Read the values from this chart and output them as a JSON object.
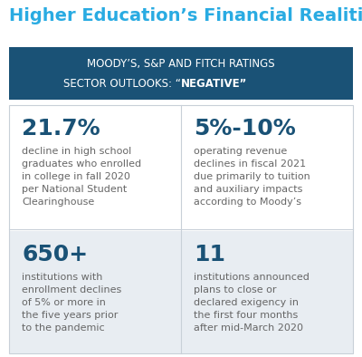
{
  "title": "Higher Education’s Financial Realities",
  "title_color": "#29ABE2",
  "title_fontsize": 14,
  "banner_bg": "#1A5276",
  "banner_text_line1": "MOODY’S, S&P AND FITCH RATINGS",
  "banner_text_line2_prefix": "SECTOR OUTLOOKS: “",
  "banner_text_line2_bold": "NEGATIVE",
  "banner_text_line2_suffix": "”",
  "banner_text_color": "#FFFFFF",
  "banner_fontsize": 8.5,
  "top_left_stat": "21.7%",
  "top_left_desc": "decline in high school\ngraduates who enrolled\nin college in fall 2020\nper National Student\nClearinghouse",
  "top_right_stat": "5%-10%",
  "top_right_desc": "operating revenue\ndeclines in fiscal 2021\ndue primarily to tuition\nand auxiliary impacts\naccording to Moody’s",
  "bottom_left_stat": "650+",
  "bottom_left_desc": "institutions with\nenrollment declines\nof 5% or more in\nthe five years prior\nto the pandemic",
  "bottom_right_stat": "11",
  "bottom_right_desc": "institutions announced\nplans to close or\ndeclared exigency in\nthe first four months\nafter mid-March 2020",
  "stat_color": "#1A5276",
  "desc_color": "#666666",
  "stat_fontsize": 18,
  "desc_fontsize": 8,
  "top_cell_bg": "#FFFFFF",
  "bottom_cell_bg": "#E8EDF2",
  "divider_color": "#C8D0D8",
  "bg_color": "#FFFFFF",
  "outer_border_color": "#C8D0D8"
}
